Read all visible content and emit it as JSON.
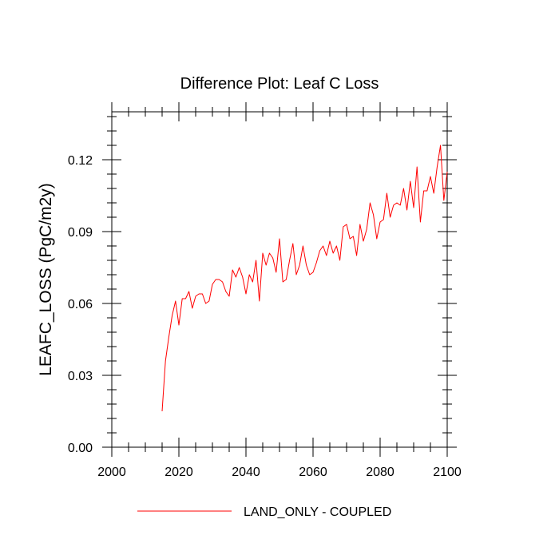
{
  "chart_data": {
    "type": "line",
    "title": "Difference Plot: Leaf C Loss",
    "xlabel": "",
    "ylabel": "LEAFC_LOSS  (PgC/m2y)",
    "xlim": [
      2000,
      2100
    ],
    "ylim": [
      0,
      0.14
    ],
    "x_ticks": [
      2000,
      2020,
      2040,
      2060,
      2080,
      2100
    ],
    "x_tick_labels": [
      "2000",
      "2020",
      "2040",
      "2060",
      "2080",
      "2100"
    ],
    "x_minor_step": 5,
    "y_ticks": [
      0,
      0.03,
      0.06,
      0.09,
      0.12
    ],
    "y_tick_labels": [
      "0.00",
      "0.03",
      "0.06",
      "0.09",
      "0.12"
    ],
    "y_minor_step": 0.006,
    "grid": false,
    "legend_position": "bottom-center",
    "series": [
      {
        "name": "LAND_ONLY - COUPLED",
        "color": "#ff0000",
        "x": [
          2015,
          2016,
          2017,
          2018,
          2019,
          2020,
          2021,
          2022,
          2023,
          2024,
          2025,
          2026,
          2027,
          2028,
          2029,
          2030,
          2031,
          2032,
          2033,
          2034,
          2035,
          2036,
          2037,
          2038,
          2039,
          2040,
          2041,
          2042,
          2043,
          2044,
          2045,
          2046,
          2047,
          2048,
          2049,
          2050,
          2051,
          2052,
          2053,
          2054,
          2055,
          2056,
          2057,
          2058,
          2059,
          2060,
          2061,
          2062,
          2063,
          2064,
          2065,
          2066,
          2067,
          2068,
          2069,
          2070,
          2071,
          2072,
          2073,
          2074,
          2075,
          2076,
          2077,
          2078,
          2079,
          2080,
          2081,
          2082,
          2083,
          2084,
          2085,
          2086,
          2087,
          2088,
          2089,
          2090,
          2091,
          2092,
          2093,
          2094,
          2095,
          2096,
          2097,
          2098,
          2099,
          2100
        ],
        "y": [
          0.015,
          0.036,
          0.046,
          0.055,
          0.061,
          0.051,
          0.062,
          0.062,
          0.065,
          0.058,
          0.063,
          0.064,
          0.064,
          0.06,
          0.061,
          0.068,
          0.07,
          0.07,
          0.069,
          0.065,
          0.063,
          0.074,
          0.071,
          0.075,
          0.071,
          0.064,
          0.072,
          0.069,
          0.078,
          0.061,
          0.081,
          0.076,
          0.081,
          0.079,
          0.073,
          0.087,
          0.069,
          0.07,
          0.078,
          0.085,
          0.072,
          0.076,
          0.084,
          0.076,
          0.072,
          0.073,
          0.077,
          0.082,
          0.084,
          0.08,
          0.086,
          0.081,
          0.084,
          0.078,
          0.092,
          0.093,
          0.087,
          0.088,
          0.08,
          0.093,
          0.086,
          0.091,
          0.102,
          0.097,
          0.087,
          0.094,
          0.095,
          0.106,
          0.096,
          0.101,
          0.102,
          0.101,
          0.108,
          0.099,
          0.111,
          0.1,
          0.117,
          0.094,
          0.107,
          0.107,
          0.113,
          0.106,
          0.117,
          0.126,
          0.103,
          0.115
        ]
      }
    ]
  }
}
